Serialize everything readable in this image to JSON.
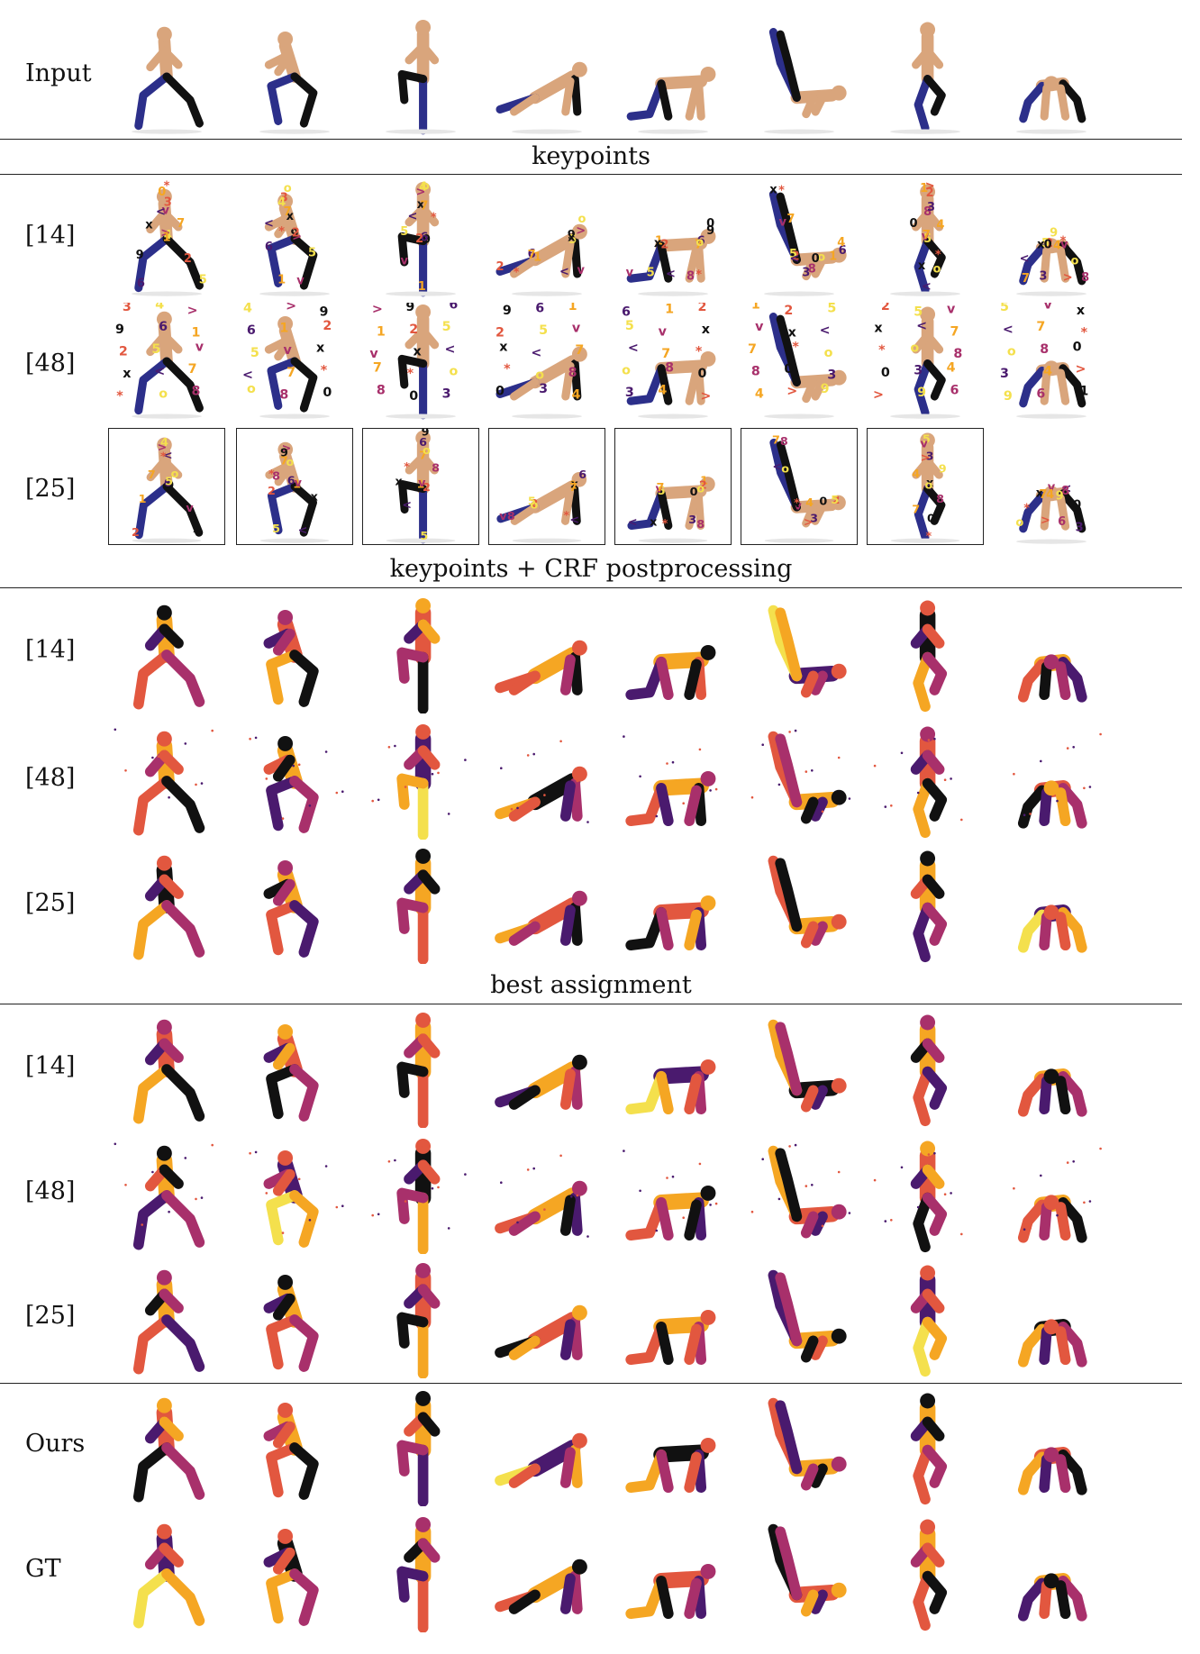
{
  "figure": {
    "sections": [
      {
        "title": ""
      },
      {
        "title": "keypoints"
      },
      {
        "title": "keypoints + CRF postprocessing"
      },
      {
        "title": "best assignment"
      },
      {
        "title": ""
      }
    ],
    "rows": [
      {
        "label": "Input",
        "section": 0,
        "style": "photo"
      },
      {
        "label": "[14]",
        "section": 1,
        "style": "keypoints-sparse"
      },
      {
        "label": "[48]",
        "section": 1,
        "style": "keypoints-grid"
      },
      {
        "label": "[25]",
        "section": 1,
        "style": "keypoints-framed"
      },
      {
        "label": "[14]",
        "section": 2,
        "style": "seg"
      },
      {
        "label": "[48]",
        "section": 2,
        "style": "seg"
      },
      {
        "label": "[25]",
        "section": 2,
        "style": "seg"
      },
      {
        "label": "[14]",
        "section": 3,
        "style": "seg"
      },
      {
        "label": "[48]",
        "section": 3,
        "style": "seg"
      },
      {
        "label": "[25]",
        "section": 3,
        "style": "seg"
      },
      {
        "label": "Ours",
        "section": 4,
        "style": "seg"
      },
      {
        "label": "GT",
        "section": 4,
        "style": "seg"
      }
    ],
    "poses": [
      "lunge",
      "squat",
      "knee-raise",
      "plank",
      "table-top",
      "leg-raise",
      "jog",
      "crab"
    ],
    "keypoint_glyphs": [
      "8",
      "0",
      "3",
      "4",
      ">",
      "9",
      "6",
      "1",
      "2",
      "5",
      "v",
      "x",
      "<",
      "7",
      "*",
      "o"
    ],
    "colors": {
      "black": "#111111",
      "purple": "#4a1a6e",
      "magenta": "#a8306b",
      "orange": "#e2573f",
      "amber": "#f5a623",
      "yellow": "#f4e04d",
      "skin": "#d9a57c",
      "outfit": "#2c2f8a"
    }
  }
}
